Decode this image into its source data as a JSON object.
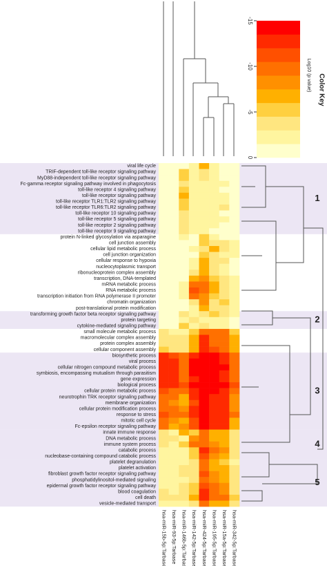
{
  "chart_data": {
    "type": "heatmap",
    "colorbar_title": "Color Key",
    "colorbar_label": "Log10 (p value)",
    "clim": [
      -15,
      0
    ],
    "cticks": [
      -15,
      -10,
      -5,
      0
    ],
    "colors": [
      "#ffffcc",
      "#fff59f",
      "#ffe680",
      "#ffd040",
      "#ffb000",
      "#ff9000",
      "#ff7000",
      "#ff5000",
      "#ff2a00",
      "#ff0000"
    ],
    "columns": [
      "hsa-miR-15b-5p:Tarbase",
      "hsa-miR-93-5p:Tarbase",
      "hsa-miR-146b-5p:Tarbase",
      "hsa-miR-142-5p:Tarbase",
      "hsa-miR-424-5p:Tarbase",
      "hsa-miR-195-5p:Tarbase",
      "hsa-miR-15a-5p:Tarbase",
      "hsa-miR-342-5p:Tarbase"
    ],
    "rows": [
      "viral life cycle",
      "TRIF-dependent toll-like receptor signaling pathway",
      "MyD88-independent toll-like receptor signaling pathway",
      "Fc-gamma receptor signaling pathway involved in phagocytosis",
      "toll-like receptor 4 signaling pathway",
      "toll-like receptor signaling pathway",
      "toll-like receptor TLR1:TLR2 signaling pathway",
      "toll-like receptor TLR6:TLR2 signaling pathway",
      "toll-like receptor 10 signaling pathway",
      "toll-like receptor 5 signaling pathway",
      "toll-like receptor 2 signaling pathway",
      "toll-like receptor 9 signaling pathway",
      "protein N-linked glycosylation via asparagine",
      "cell junction assembly",
      "cellular lipid metabolic process",
      "cell junction organization",
      "cellular response to hypoxia",
      "nucleocytoplasmic transport",
      "ribonucleoprotein complex assembly",
      "transcription, DNA-templated",
      "mRNA metabolic process",
      "RNA metabolic process",
      "transcription initiation from RNA polymerase II promoter",
      "chromatin organization",
      "post-translational protein modification",
      "transforming growth factor beta receptor signaling pathway",
      "protein targeting",
      "cytokine-mediated signaling pathway",
      "small molecule metabolic process",
      "macromolecular complex assembly",
      "protein complex assembly",
      "cellular component assembly",
      "biosynthetic process",
      "viral process",
      "cellular nitrogen compound metabolic process",
      "symbiosis, encompassing mutualism through parasitism",
      "gene expression",
      "biological process",
      "cellular protein metabolic process",
      "neurotrophin TRK receptor signaling pathway",
      "membrane organization",
      "cellular protein modification process",
      "response to stress",
      "mitotic cell cycle",
      "Fc-epsilon receptor signaling pathway",
      "innate immune response",
      "DNA metabolic process",
      "immune system process",
      "catabolic process",
      "nucleobase-containing compound catabolic process",
      "platelet degranulation",
      "platelet activation",
      "fibroblast growth factor receptor signaling pathway",
      "phosphatidylinositol-mediated signaling",
      "epidermal growth factor receptor signaling pathway",
      "blood coagulation",
      "cell death",
      "vesicle-mediated transport"
    ],
    "values": [
      [
        -1,
        -1,
        -1,
        -2,
        -6,
        -2,
        -1,
        -1
      ],
      [
        -1,
        -1,
        -5,
        -2,
        -3,
        -2,
        -1,
        -1
      ],
      [
        -1,
        -1,
        -5,
        -2,
        -3,
        -2,
        -1,
        -1
      ],
      [
        -1,
        -1,
        -4,
        -2,
        -2,
        -2,
        -2,
        -1
      ],
      [
        -1,
        -1,
        -5,
        -2,
        -2,
        -2,
        -1,
        -1
      ],
      [
        -1,
        -1,
        -6,
        -2,
        -2,
        -2,
        -2,
        -1
      ],
      [
        -1,
        -1,
        -5,
        -2,
        -2,
        -2,
        -2,
        -1
      ],
      [
        -1,
        -1,
        -5,
        -2,
        -2,
        -2,
        -3,
        -1
      ],
      [
        -1,
        -1,
        -4,
        -2,
        -2,
        -2,
        -1,
        -1
      ],
      [
        -1,
        -1,
        -4,
        -2,
        -2,
        -2,
        -2,
        -1
      ],
      [
        -1,
        -1,
        -4,
        -2,
        -2,
        -2,
        -1,
        -1
      ],
      [
        -1,
        -1,
        -4,
        -2,
        -2,
        -1,
        -1,
        -1
      ],
      [
        -1,
        -1,
        -2,
        -1,
        -5,
        -2,
        -1,
        -1
      ],
      [
        -1,
        -1,
        -1,
        -1,
        -5,
        -3,
        -4,
        -2
      ],
      [
        -1,
        -1,
        -1,
        -2,
        -4,
        -6,
        -3,
        -2
      ],
      [
        -1,
        -1,
        -1,
        -1,
        -5,
        -3,
        -2,
        -2
      ],
      [
        -1,
        -1,
        -1,
        -2,
        -6,
        -4,
        -3,
        -1
      ],
      [
        -1,
        -1,
        -1,
        -2,
        -7,
        -3,
        -2,
        -1
      ],
      [
        -1,
        -1,
        -1,
        -3,
        -7,
        -4,
        -2,
        -1
      ],
      [
        -1,
        -1,
        -1,
        -6,
        -8,
        -5,
        -3,
        -2
      ],
      [
        -1,
        -1,
        -2,
        -10,
        -9,
        -6,
        -4,
        -2
      ],
      [
        -1,
        -1,
        -2,
        -11,
        -10,
        -6,
        -4,
        -2
      ],
      [
        -1,
        -1,
        -2,
        -9,
        -8,
        -5,
        -3,
        -2
      ],
      [
        -1,
        -1,
        -1,
        -3,
        -8,
        -4,
        -5,
        -2
      ],
      [
        -1,
        -1,
        -1,
        -2,
        -7,
        -3,
        -4,
        -2
      ],
      [
        -1,
        -1,
        -3,
        -2,
        -3,
        -5,
        -3,
        -2
      ],
      [
        -1,
        -1,
        -2,
        -4,
        -2,
        -2,
        -2,
        -1
      ],
      [
        -1,
        -1,
        -5,
        -2,
        -3,
        -2,
        -2,
        -1
      ],
      [
        -3,
        -2,
        -2,
        -5,
        -10,
        -9,
        -9,
        -5
      ],
      [
        -4,
        -3,
        -3,
        -6,
        -12,
        -10,
        -10,
        -6
      ],
      [
        -4,
        -3,
        -3,
        -6,
        -12,
        -10,
        -10,
        -6
      ],
      [
        -5,
        -3,
        -4,
        -7,
        -12,
        -11,
        -10,
        -7
      ],
      [
        -12,
        -11,
        -9,
        -13,
        -15,
        -14,
        -13,
        -10
      ],
      [
        -12,
        -12,
        -10,
        -14,
        -15,
        -14,
        -13,
        -9
      ],
      [
        -13,
        -12,
        -10,
        -14,
        -15,
        -14,
        -14,
        -10
      ],
      [
        -12,
        -12,
        -10,
        -14,
        -15,
        -14,
        -13,
        -9
      ],
      [
        -12,
        -12,
        -9,
        -13,
        -15,
        -14,
        -13,
        -9
      ],
      [
        -13,
        -13,
        -11,
        -14,
        -15,
        -15,
        -14,
        -11
      ],
      [
        -11,
        -10,
        -9,
        -13,
        -15,
        -14,
        -13,
        -9
      ],
      [
        -10,
        -9,
        -7,
        -12,
        -14,
        -13,
        -12,
        -8
      ],
      [
        -9,
        -8,
        -7,
        -11,
        -14,
        -12,
        -12,
        -8
      ],
      [
        -10,
        -9,
        -8,
        -12,
        -14,
        -13,
        -12,
        -8
      ],
      [
        -11,
        -10,
        -9,
        -12,
        -15,
        -13,
        -13,
        -9
      ],
      [
        -9,
        -8,
        -6,
        -11,
        -14,
        -13,
        -12,
        -7
      ],
      [
        -9,
        -7,
        -8,
        -11,
        -14,
        -12,
        -12,
        -7
      ],
      [
        -3,
        -2,
        -6,
        -5,
        -9,
        -7,
        -6,
        -3
      ],
      [
        -3,
        -3,
        -2,
        -8,
        -10,
        -7,
        -6,
        -3
      ],
      [
        -3,
        -2,
        -5,
        -9,
        -10,
        -8,
        -7,
        -4
      ],
      [
        -2,
        -2,
        -2,
        -5,
        -12,
        -9,
        -8,
        -4
      ],
      [
        -2,
        -2,
        -2,
        -5,
        -11,
        -8,
        -7,
        -4
      ],
      [
        -2,
        -2,
        -2,
        -3,
        -9,
        -6,
        -5,
        -2
      ],
      [
        -2,
        -2,
        -3,
        -4,
        -10,
        -7,
        -6,
        -3
      ],
      [
        -2,
        -2,
        -3,
        -4,
        -11,
        -8,
        -7,
        -3
      ],
      [
        -2,
        -2,
        -2,
        -4,
        -10,
        -8,
        -7,
        -3
      ],
      [
        -2,
        -2,
        -3,
        -5,
        -11,
        -9,
        -8,
        -4
      ],
      [
        -3,
        -2,
        -3,
        -5,
        -12,
        -9,
        -8,
        -4
      ],
      [
        -3,
        -3,
        -3,
        -6,
        -13,
        -10,
        -9,
        -5
      ],
      [
        -2,
        -2,
        -2,
        -4,
        -10,
        -7,
        -6,
        -3
      ]
    ],
    "clusters": [
      {
        "label": "1",
        "first": 0,
        "last": 11
      },
      {
        "label": "2",
        "first": 25,
        "last": 27
      },
      {
        "label": "3",
        "first": 32,
        "last": 44
      },
      {
        "label": "4",
        "first": 45,
        "last": 49
      },
      {
        "label": "5",
        "first": 50,
        "last": 57
      }
    ],
    "cluster_color": "#ece6f4"
  }
}
